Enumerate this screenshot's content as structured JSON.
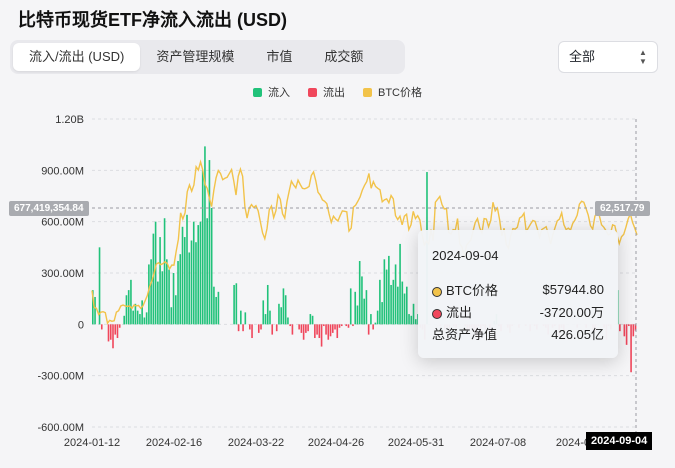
{
  "title": "比特币现货ETF净流入流出 (USD)",
  "tabs": [
    {
      "label": "流入/流出 (USD)",
      "active": true
    },
    {
      "label": "资产管理规模",
      "active": false
    },
    {
      "label": "市值",
      "active": false
    },
    {
      "label": "成交额",
      "active": false
    }
  ],
  "select": {
    "value": "全部",
    "icon": "chevron-up-down-icon"
  },
  "legend": [
    {
      "label": "流入",
      "color": "#21c27a"
    },
    {
      "label": "流出",
      "color": "#f0475c"
    },
    {
      "label": "BTC价格",
      "color": "#f2c34a"
    }
  ],
  "crosshair": {
    "left_label": "677,419,354.84",
    "right_label": "62,517.79",
    "date_label": "2024-09-04"
  },
  "tooltip": {
    "date": "2024-09-04",
    "rows": [
      {
        "label": "BTC价格",
        "value": "$57944.80",
        "dot": "#f2c34a"
      },
      {
        "label": "流出",
        "value": "-3720.00万",
        "dot": "#f0475c"
      },
      {
        "label": "总资产净值",
        "value": "426.05亿",
        "dot": ""
      }
    ]
  },
  "chart_data": {
    "type": "bar",
    "y_tick_labels": [
      "1.20B",
      "900.00M",
      "600.00M",
      "300.00M",
      "0",
      "-300.00M",
      "-600.00M"
    ],
    "y_ticks": [
      1200000000,
      900000000,
      600000000,
      300000000,
      0,
      -300000000,
      -600000000
    ],
    "x_tick_labels": [
      "2024-01-12",
      "2024-02-16",
      "2024-03-22",
      "2024-04-26",
      "2024-05-31",
      "2024-07-08",
      "2024-0"
    ],
    "ylim": [
      -600000000,
      1200000000
    ],
    "series": [
      {
        "name": "流入",
        "color": "#21c27a",
        "values": [
          200,
          160,
          0,
          450,
          -30,
          0,
          0,
          -100,
          -90,
          -140,
          -60,
          -80,
          -20,
          0,
          50,
          170,
          200,
          260,
          80,
          120,
          80,
          60,
          140,
          40,
          70,
          350,
          380,
          530,
          600,
          250,
          510,
          310,
          620,
          380,
          320,
          100,
          300,
          170,
          370,
          410,
          570,
          510,
          640,
          420,
          490,
          600,
          480,
          580,
          600,
          900,
          1040,
          620,
          960,
          680,
          220,
          160,
          190,
          0,
          0,
          0,
          0,
          0,
          0,
          230,
          240,
          -40,
          80,
          -40,
          70,
          0,
          -30,
          -80,
          0,
          0,
          -50,
          -30,
          140,
          60,
          230,
          80,
          -60,
          0,
          -40,
          120,
          100,
          210,
          170,
          40,
          -10,
          -60,
          0,
          0,
          -30,
          -50,
          -90,
          -50,
          -40,
          60,
          50,
          -80,
          -60,
          -80,
          -130,
          -10,
          -60,
          -90,
          -70,
          -50,
          -30,
          -80,
          -20,
          -10,
          0,
          -10,
          -20,
          210,
          -10,
          190,
          110,
          370,
          280,
          150,
          200,
          -60,
          60,
          -30,
          10,
          80,
          260,
          130,
          380,
          320,
          400,
          230,
          260,
          350,
          220,
          470,
          250,
          180,
          220,
          60,
          50,
          120,
          30,
          60,
          -20,
          -30,
          -90,
          890,
          0,
          0,
          0,
          0,
          0,
          -10,
          0,
          -30,
          -20,
          -30,
          0,
          -10,
          -20,
          0,
          0,
          0,
          -10,
          -60,
          -30,
          -20,
          -40,
          -70,
          -10,
          -50,
          -10,
          -30,
          0,
          -60,
          0,
          20,
          60,
          -10,
          -40,
          0,
          0,
          -20,
          -50,
          -10,
          0,
          0,
          -20,
          0,
          0,
          -10,
          0,
          -40,
          0,
          -10,
          -30,
          0,
          0,
          -10,
          -20,
          -60,
          0,
          -20,
          -10,
          0,
          -70,
          -20,
          -40,
          0,
          0,
          0,
          0,
          0,
          -20,
          0,
          0,
          0,
          -20,
          0,
          0,
          -30,
          -40,
          0,
          0,
          0,
          -20,
          -90,
          -10,
          -30,
          0,
          0,
          200,
          -40,
          0,
          -70,
          -120,
          -10,
          -280,
          -70,
          -37
        ],
        "unit": "M"
      },
      {
        "name": "BTC价格",
        "color": "#f2c34a",
        "values": [
          46300,
          42800,
          42600,
          41300,
          41800,
          41900,
          41700,
          39500,
          40100,
          39900,
          40000,
          41800,
          42100,
          43100,
          43300,
          43100,
          43000,
          43100,
          42600,
          43300,
          43100,
          43200,
          42600,
          43100,
          44200,
          45300,
          47100,
          48300,
          49900,
          51800,
          52100,
          51700,
          51900,
          52300,
          51900,
          50800,
          51600,
          51600,
          54500,
          57000,
          62500,
          61200,
          62500,
          66900,
          68300,
          67000,
          68300,
          72100,
          71400,
          73100,
          71400,
          68400,
          67600,
          65500,
          63800,
          67200,
          69800,
          71300,
          70700,
          69400,
          69700,
          69900,
          70700,
          71500,
          69100,
          66200,
          70100,
          71600,
          70100,
          63800,
          61400,
          63500,
          64200,
          63600,
          64000,
          62900,
          60600,
          58300,
          57100,
          59200,
          63100,
          63900,
          61500,
          62900,
          66200,
          65300,
          62300,
          61400,
          64800,
          67000,
          69100,
          68300,
          67700,
          69300,
          68400,
          67600,
          67500,
          67700,
          68000,
          70300,
          71000,
          69200,
          66800,
          66200,
          65200,
          64900,
          64400,
          62300,
          60500,
          61800,
          61200,
          60800,
          61900,
          62900,
          62800,
          62700,
          58700,
          59300,
          63700,
          64100,
          64900,
          65800,
          67200,
          68200,
          69000,
          70700,
          67600,
          69000,
          68000,
          67600,
          67300,
          64800,
          65200,
          65400,
          64600,
          66100,
          65400,
          61900,
          61100,
          61800,
          60000,
          61800,
          62200,
          59000,
          60000,
          62800,
          61300,
          61900,
          61000,
          57900,
          55800,
          56600,
          56000,
          59000,
          56700,
          64700,
          65300,
          65900,
          64200,
          63300,
          63400,
          58400,
          58100,
          59000,
          58900,
          61300,
          56000,
          55400,
          53100,
          55700,
          56300,
          56800,
          58700,
          60500,
          61300,
          59400,
          58300,
          61300,
          61200,
          59600,
          60900,
          64700,
          62900,
          63500,
          61000,
          57700,
          59300,
          55900,
          55100,
          57800,
          59200,
          59100,
          59500,
          61400,
          61700,
          62400,
          58600,
          59400,
          60200,
          60900,
          60700,
          59200,
          57400,
          59000,
          59300,
          59600,
          58000,
          56000,
          57900,
          59400,
          60800,
          61200,
          62500,
          60000,
          59000,
          59300,
          58900,
          60300,
          61000,
          62000,
          64300,
          64900,
          64700,
          63400,
          62000,
          59800,
          59100,
          61800,
          62500,
          61900,
          60000,
          59500,
          58800,
          57900,
          58100,
          60000,
          59800,
          57800,
          56100,
          57500,
          58000,
          59500,
          61200,
          62300,
          60500,
          59300,
          57900
        ],
        "unit": "USD"
      }
    ],
    "x_range": [
      "2024-01-12",
      "2024-09-04"
    ]
  }
}
